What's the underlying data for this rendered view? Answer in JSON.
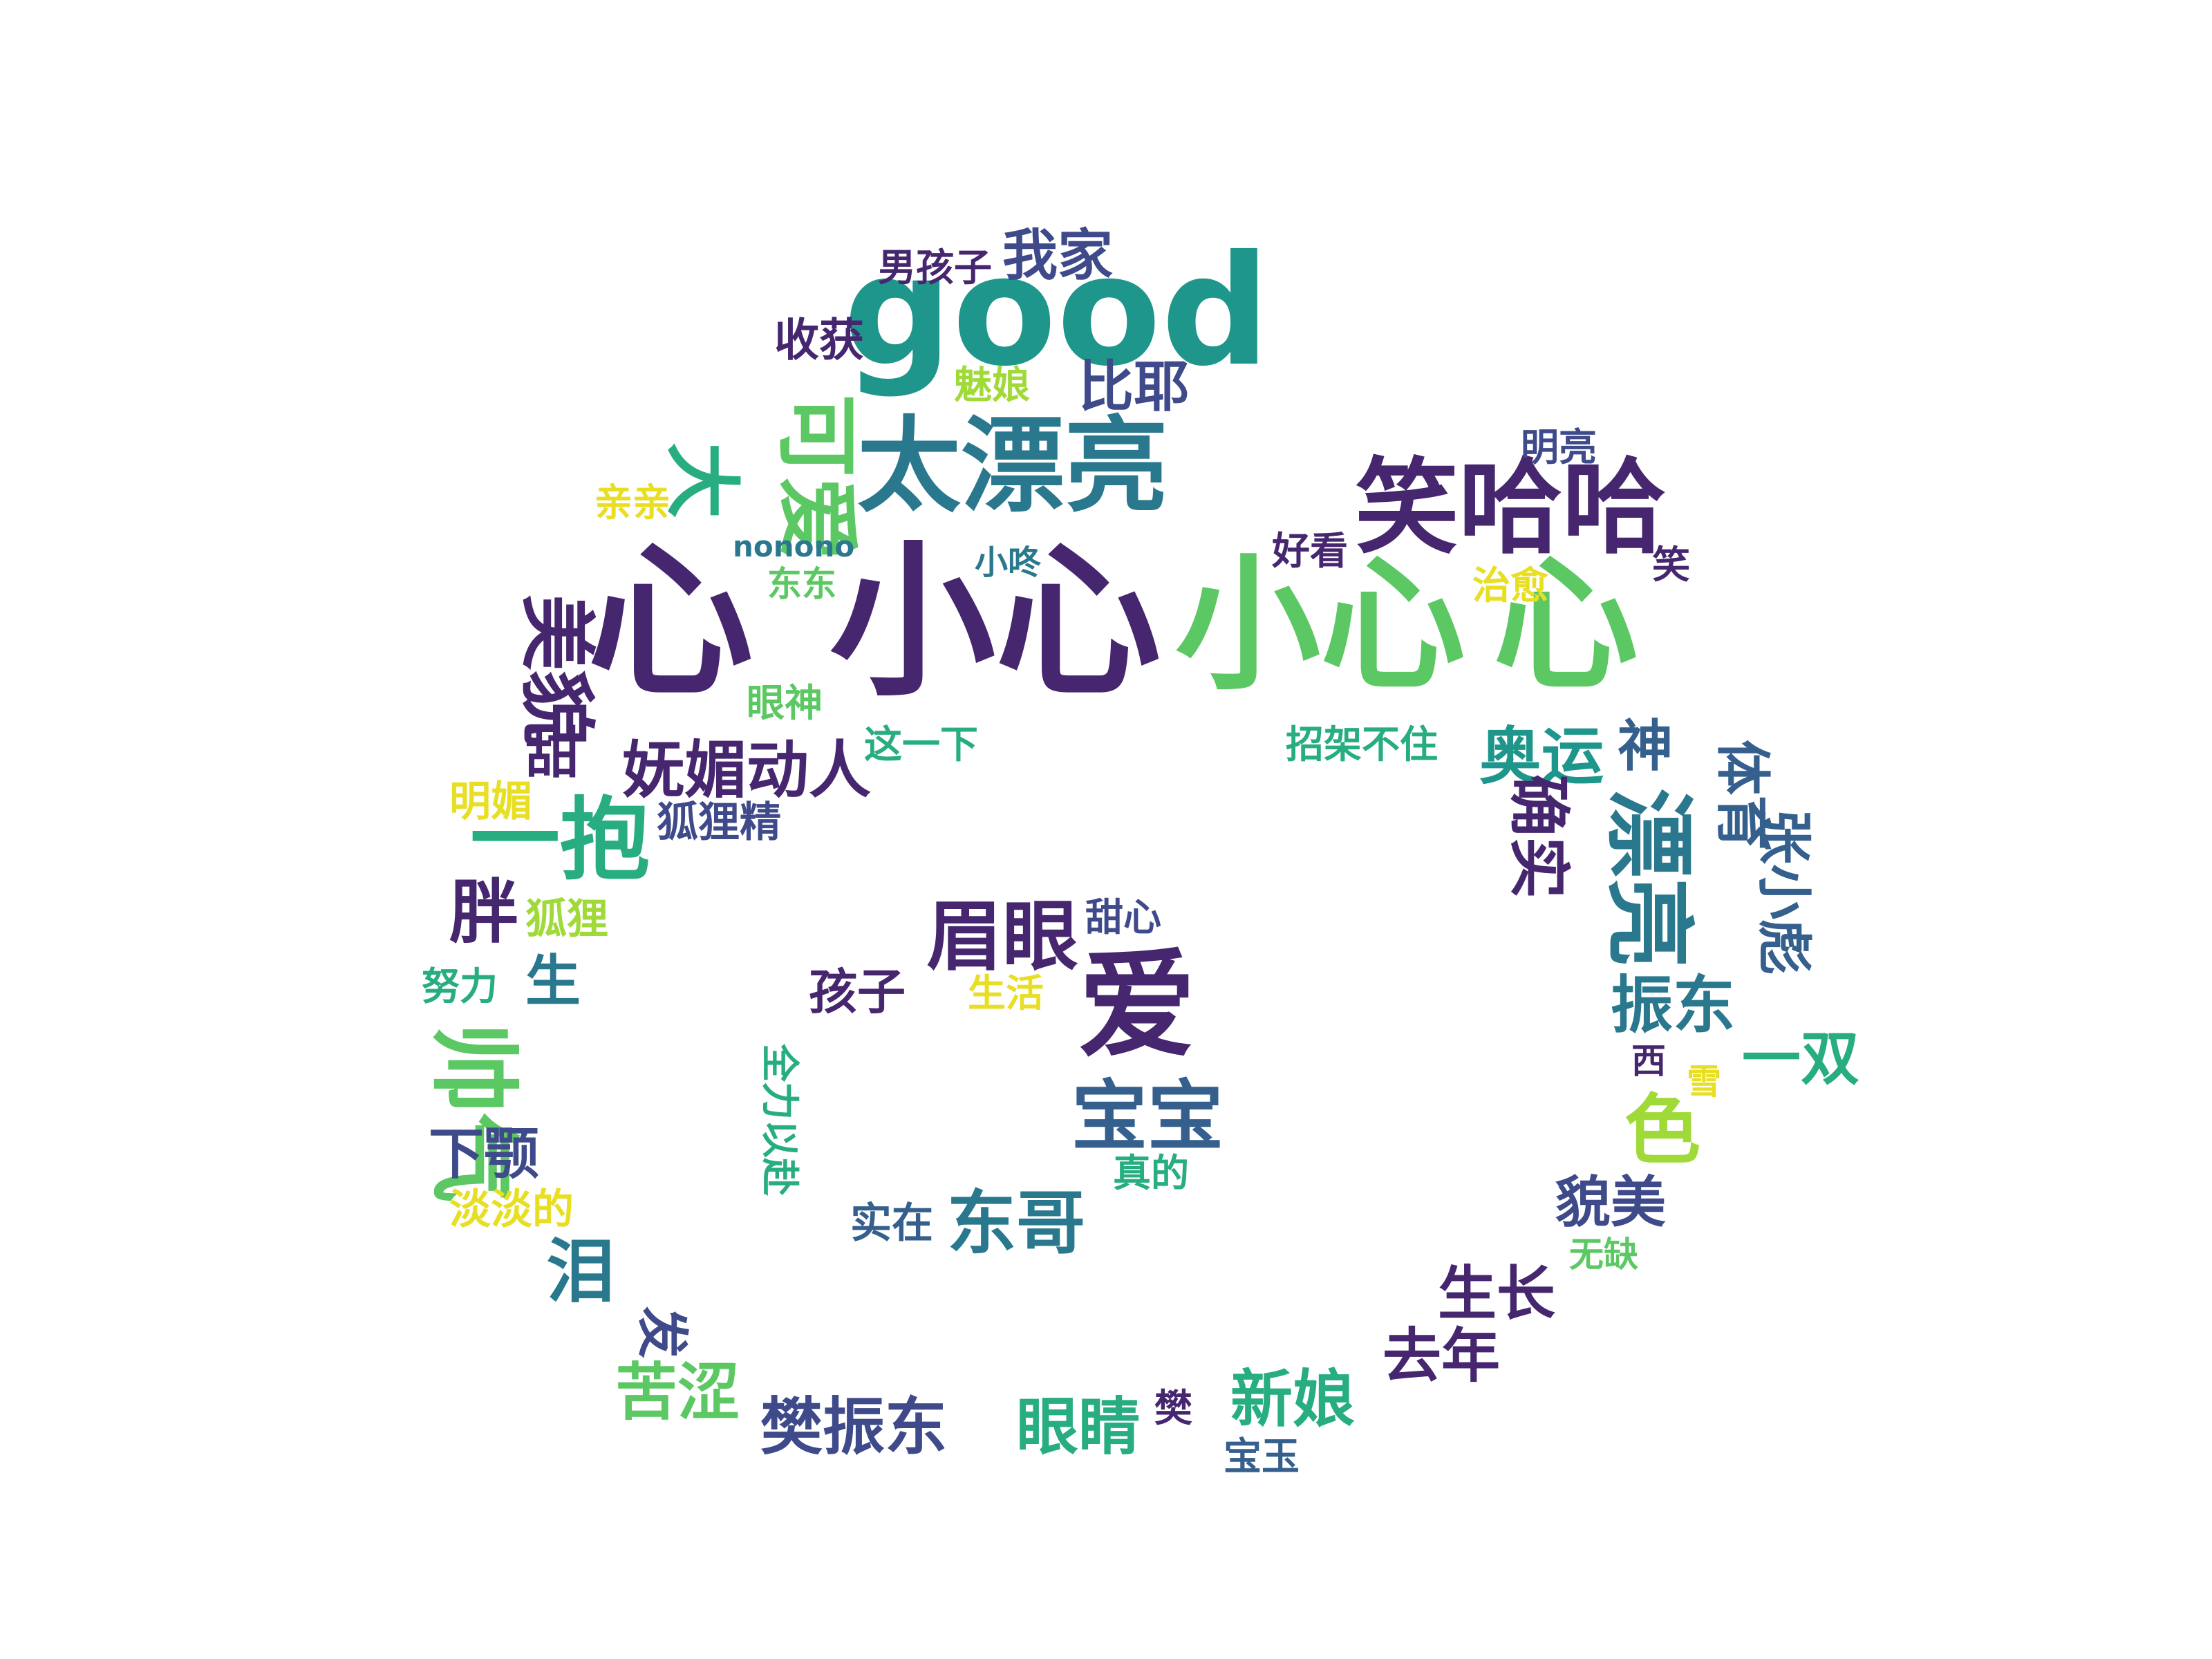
{
  "palette": {
    "dark_purple": "#46276f",
    "indigo": "#3f4a8a",
    "blue": "#35608d",
    "teal_blue": "#2a788e",
    "teal": "#1f968b",
    "green_teal": "#27ad81",
    "green": "#5cc863",
    "lime": "#a0da39",
    "yellow": "#e8df24"
  },
  "words": [
    {
      "text": "心",
      "color": "#46276f"
    },
    {
      "text": "小心",
      "color": "#46276f"
    },
    {
      "text": "小心",
      "color": "#5cc863"
    },
    {
      "text": "心",
      "color": "#5cc863"
    },
    {
      "text": "good",
      "color": "#1f968b"
    },
    {
      "text": "太漂亮",
      "color": "#2a788e"
    },
    {
      "text": "笑哈哈",
      "color": "#46276f"
    },
    {
      "text": "我家",
      "color": "#3f4a8a"
    },
    {
      "text": "男孩子",
      "color": "#46276f"
    },
    {
      "text": "收获",
      "color": "#46276f"
    },
    {
      "text": "魅娘",
      "color": "#a0da39"
    },
    {
      "text": "比耶",
      "color": "#3f4a8a"
    },
    {
      "text": "可爱",
      "color": "#5cc863"
    },
    {
      "text": "大",
      "color": "#27ad81"
    },
    {
      "text": "亲亲",
      "color": "#e8df24"
    },
    {
      "text": "nonono",
      "color": "#2a788e"
    },
    {
      "text": "东东",
      "color": "#5cc863"
    },
    {
      "text": "小咚",
      "color": "#2a788e"
    },
    {
      "text": "明亮",
      "color": "#3f4a8a"
    },
    {
      "text": "好看",
      "color": "#46276f"
    },
    {
      "text": "治愈",
      "color": "#e8df24"
    },
    {
      "text": "笑",
      "color": "#46276f"
    },
    {
      "text": "美貌",
      "color": "#46276f"
    },
    {
      "text": "眼神",
      "color": "#5cc863"
    },
    {
      "text": "这一下",
      "color": "#27ad81"
    },
    {
      "text": "甜",
      "color": "#46276f"
    },
    {
      "text": "妩媚动人",
      "color": "#46276f"
    },
    {
      "text": "招架不住",
      "color": "#27ad81"
    },
    {
      "text": "奥运",
      "color": "#1f968b"
    },
    {
      "text": "神",
      "color": "#35608d"
    },
    {
      "text": "体育",
      "color": "#35608d"
    },
    {
      "text": "明媚",
      "color": "#e8df24"
    },
    {
      "text": "狐狸精",
      "color": "#3f4a8a"
    },
    {
      "text": "一抱",
      "color": "#27ad81"
    },
    {
      "text": "确实",
      "color": "#46276f"
    },
    {
      "text": "漂亮",
      "color": "#2a788e"
    },
    {
      "text": "张小彪",
      "color": "#35608d"
    },
    {
      "text": "胖",
      "color": "#46276f"
    },
    {
      "text": "狐狸",
      "color": "#a0da39"
    },
    {
      "text": "眉眼",
      "color": "#46276f"
    },
    {
      "text": "甜心",
      "color": "#3f4a8a"
    },
    {
      "text": "努力",
      "color": "#27ad81"
    },
    {
      "text": "生",
      "color": "#2a788e"
    },
    {
      "text": "孩子",
      "color": "#46276f"
    },
    {
      "text": "生活",
      "color": "#e8df24"
    },
    {
      "text": "爱",
      "color": "#46276f"
    },
    {
      "text": "振东",
      "color": "#2a788e"
    },
    {
      "text": "一双",
      "color": "#27ad81"
    },
    {
      "text": "西",
      "color": "#46276f"
    },
    {
      "text": "雪",
      "color": "#e8df24"
    },
    {
      "text": "帅气",
      "color": "#5cc863"
    },
    {
      "text": "全力以赴",
      "color": "#27ad81"
    },
    {
      "text": "宝宝",
      "color": "#35608d"
    },
    {
      "text": "色",
      "color": "#a0da39"
    },
    {
      "text": "下颚",
      "color": "#3f4a8a"
    },
    {
      "text": "淡淡的",
      "color": "#e8df24"
    },
    {
      "text": "真的",
      "color": "#27ad81"
    },
    {
      "text": "实在",
      "color": "#35608d"
    },
    {
      "text": "东哥",
      "color": "#2a788e"
    },
    {
      "text": "貌美",
      "color": "#3f4a8a"
    },
    {
      "text": "无缺",
      "color": "#5cc863"
    },
    {
      "text": "泪",
      "color": "#2a788e"
    },
    {
      "text": "生长",
      "color": "#46276f"
    },
    {
      "text": "发",
      "color": "#3f4a8a"
    },
    {
      "text": "去年",
      "color": "#46276f"
    },
    {
      "text": "苦涩",
      "color": "#5cc863"
    },
    {
      "text": "樊振东",
      "color": "#3f4a8a"
    },
    {
      "text": "眼睛",
      "color": "#27ad81"
    },
    {
      "text": "樊",
      "color": "#46276f"
    },
    {
      "text": "新娘",
      "color": "#27ad81"
    },
    {
      "text": "宝玉",
      "color": "#35608d"
    }
  ]
}
